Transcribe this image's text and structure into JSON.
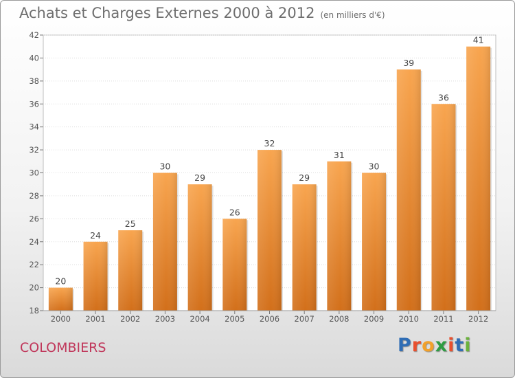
{
  "header": {
    "title": "Achats et Charges Externes 2000 à 2012",
    "unit": "(en milliers d'€)"
  },
  "footer": {
    "city": "COLOMBIERS",
    "brand_letters": [
      "P",
      "r",
      "o",
      "x",
      "i",
      "t",
      "i"
    ],
    "brand_colors": [
      "#2f6db5",
      "#e94f2d",
      "#f2a12b",
      "#2f9c43",
      "#e94f2d",
      "#2f6db5",
      "#6bb23c"
    ]
  },
  "chart_data": {
    "type": "bar",
    "title": "Achats et Charges Externes 2000 à 2012",
    "xlabel": "",
    "ylabel": "",
    "categories": [
      "2000",
      "2001",
      "2002",
      "2003",
      "2004",
      "2005",
      "2006",
      "2007",
      "2008",
      "2009",
      "2010",
      "2011",
      "2012"
    ],
    "values": [
      20,
      24,
      25,
      30,
      29,
      26,
      32,
      29,
      31,
      30,
      39,
      36,
      41
    ],
    "ylim": [
      18,
      42
    ],
    "yticks": [
      18,
      20,
      22,
      24,
      26,
      28,
      30,
      32,
      34,
      36,
      38,
      40,
      42
    ],
    "grid": true,
    "bar_color_top": "#f8a54f",
    "bar_color_bottom": "#d26f1a"
  }
}
